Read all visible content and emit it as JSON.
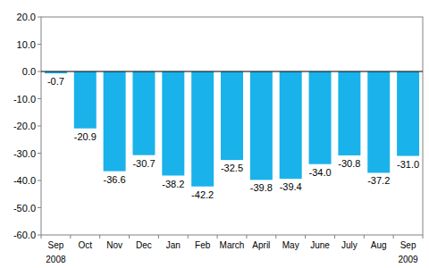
{
  "chart_data": {
    "type": "bar",
    "categories": [
      "Sep",
      "Oct",
      "Nov",
      "Dec",
      "Jan",
      "Feb",
      "March",
      "April",
      "May",
      "June",
      "July",
      "Aug",
      "Sep"
    ],
    "year_labels": [
      "2008",
      null,
      null,
      null,
      null,
      null,
      null,
      null,
      null,
      null,
      null,
      null,
      "2009"
    ],
    "values": [
      -0.7,
      -20.9,
      -36.6,
      -30.7,
      -38.2,
      -42.2,
      -32.5,
      -39.8,
      -39.4,
      -34.0,
      -30.8,
      -37.2,
      -31.0
    ],
    "value_labels": [
      "-0.7",
      "-20.9",
      "-36.6",
      "-30.7",
      "-38.2",
      "-42.2",
      "-32.5",
      "-39.8",
      "-39.4",
      "-34.0",
      "-30.8",
      "-37.2",
      "-31.0"
    ],
    "color": "#1ab2ea",
    "ylim": [
      -60,
      20
    ],
    "yticks": [
      {
        "value": 20,
        "label": "20.0"
      },
      {
        "value": 10,
        "label": "10.0"
      },
      {
        "value": 0,
        "label": "0.0"
      },
      {
        "value": -10,
        "label": "-10.0"
      },
      {
        "value": -20,
        "label": "-20.0"
      },
      {
        "value": -30,
        "label": "-30.0"
      },
      {
        "value": -40,
        "label": "-40.0"
      },
      {
        "value": -50,
        "label": "-50.0"
      },
      {
        "value": -60,
        "label": "-60.0"
      }
    ],
    "grid": false,
    "data_labels": true
  }
}
